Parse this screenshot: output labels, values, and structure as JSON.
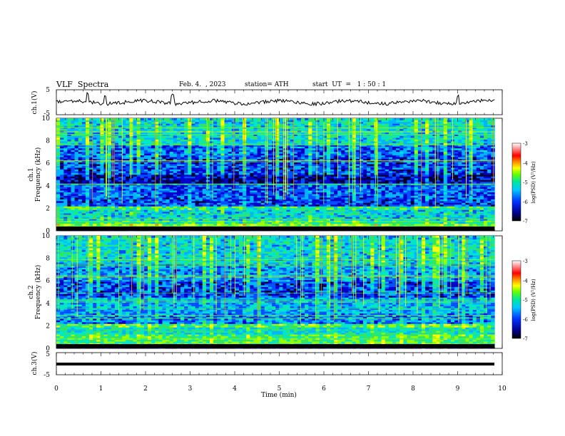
{
  "header": {
    "title": "VLF  Spectra",
    "date": "Feb. 4.  , 2023",
    "station": "station= ATH",
    "start": "start  UT  =   1 : 50 : 1"
  },
  "colors": {
    "waveform": "#000000",
    "colormap": [
      "#000033",
      "#0000cc",
      "#0050ff",
      "#00b4ff",
      "#00e6c8",
      "#32e664",
      "#96ff00",
      "#ffff00",
      "#ff8c00",
      "#ff0000",
      "#ffffff"
    ]
  },
  "chart_data": [
    {
      "type": "line",
      "name": "ch1-waveform",
      "ylabel": "ch.1(V)",
      "xlim": [
        0,
        10
      ],
      "ylim": [
        -5,
        5
      ],
      "yticks": [
        -5,
        5
      ],
      "baseline": 0,
      "description_of_values": "noisy trace around 0 V with small spikes near t=0.7, 1.1, 2.6, 9.0 min",
      "spike_times": [
        0.7,
        1.1,
        2.6,
        9.0
      ]
    },
    {
      "type": "heatmap",
      "name": "ch1-spectrogram",
      "ylabel": "Frequency  (kHz)",
      "channel_label": "ch.1",
      "xlim": [
        0,
        10
      ],
      "data_x_max": 9.83,
      "ylim": [
        0,
        10
      ],
      "yticks": [
        0,
        2,
        4,
        6,
        8,
        10
      ],
      "colorbar": {
        "label": "log(PSD) (V²/Hz)",
        "ticks": [
          -3,
          -4,
          -5,
          -6,
          -7
        ],
        "range": [
          -7,
          -3
        ]
      },
      "bands": [
        {
          "f0": 0.0,
          "f1": 0.15,
          "level": -7.0
        },
        {
          "f0": 0.15,
          "f1": 0.55,
          "level": -4.6
        },
        {
          "f0": 0.55,
          "f1": 1.0,
          "level": -5.2
        },
        {
          "f0": 1.0,
          "f1": 1.9,
          "level": -5.6
        },
        {
          "f0": 1.9,
          "f1": 2.2,
          "level": -5.1
        },
        {
          "f0": 2.2,
          "f1": 3.0,
          "level": -6.3
        },
        {
          "f0": 3.0,
          "f1": 4.2,
          "level": -6.2
        },
        {
          "f0": 4.2,
          "f1": 5.0,
          "level": -6.7
        },
        {
          "f0": 5.0,
          "f1": 6.6,
          "level": -6.3
        },
        {
          "f0": 6.6,
          "f1": 7.6,
          "level": -6.1
        },
        {
          "f0": 7.6,
          "f1": 10.0,
          "level": -5.5
        }
      ]
    },
    {
      "type": "heatmap",
      "name": "ch2-spectrogram",
      "ylabel": "Frequency  (kHz)",
      "channel_label": "ch.2",
      "xlim": [
        0,
        10
      ],
      "data_x_max": 9.83,
      "ylim": [
        0,
        10
      ],
      "yticks": [
        0,
        2,
        4,
        6,
        8,
        10
      ],
      "colorbar": {
        "label": "log(PSD) (V²/Hz)",
        "ticks": [
          -3,
          -4,
          -5,
          -6,
          -7
        ],
        "range": [
          -7,
          -3
        ]
      },
      "bands": [
        {
          "f0": 0.0,
          "f1": 0.2,
          "level": -6.8
        },
        {
          "f0": 0.2,
          "f1": 1.2,
          "level": -5.0
        },
        {
          "f0": 1.2,
          "f1": 1.8,
          "level": -5.4
        },
        {
          "f0": 1.8,
          "f1": 2.2,
          "level": -4.9
        },
        {
          "f0": 2.2,
          "f1": 3.2,
          "level": -6.0
        },
        {
          "f0": 3.2,
          "f1": 4.5,
          "level": -5.8
        },
        {
          "f0": 4.5,
          "f1": 6.0,
          "level": -6.3
        },
        {
          "f0": 6.0,
          "f1": 7.5,
          "level": -5.9
        },
        {
          "f0": 7.5,
          "f1": 10.0,
          "level": -5.5
        }
      ]
    },
    {
      "type": "line",
      "name": "ch3-waveform",
      "ylabel": "ch.3(V)",
      "xlim": [
        0,
        10
      ],
      "ylim": [
        -5,
        5
      ],
      "yticks": [
        -5,
        5
      ],
      "baseline": 0,
      "description_of_values": "flat thick trace at about 0 V"
    }
  ],
  "xaxis": {
    "label": "Time  (min)",
    "ticks": [
      0,
      1,
      2,
      3,
      4,
      5,
      6,
      7,
      8,
      9,
      10
    ]
  }
}
